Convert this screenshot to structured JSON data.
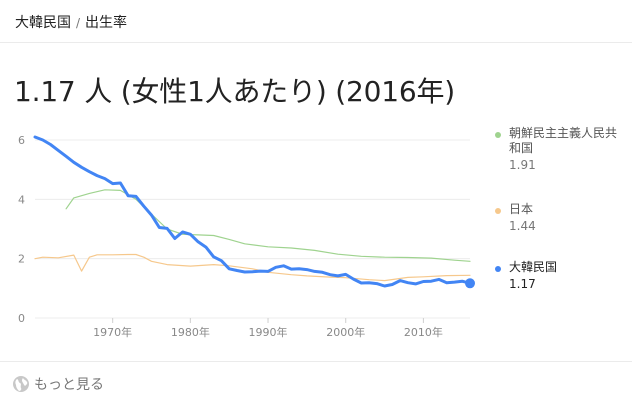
{
  "breadcrumb": {
    "country": "大韓民国",
    "separator": "/",
    "metric": "出生率"
  },
  "headline": "1.17 人 (女性1人あたり) (2016年)",
  "legend": [
    {
      "name": "朝鮮民主主義人民共和国",
      "value": "1.91",
      "color": "#9fd38f"
    },
    {
      "name": "日本",
      "value": "1.44",
      "color": "#f6c88c"
    },
    {
      "name": "大韓民国",
      "value": "1.17",
      "color": "#4285f4"
    }
  ],
  "footer": {
    "more_label": "もっと見る",
    "icon": "globe-icon"
  },
  "chart_data": {
    "type": "line",
    "title": "",
    "xlabel": "",
    "ylabel": "",
    "xlim": [
      1960,
      2016
    ],
    "ylim": [
      0,
      6
    ],
    "yticks": [
      "0",
      "2",
      "4",
      "6"
    ],
    "xticks": [
      {
        "x": 1970,
        "label": "1970年"
      },
      {
        "x": 1980,
        "label": "1980年"
      },
      {
        "x": 1990,
        "label": "1990年"
      },
      {
        "x": 2000,
        "label": "2000年"
      },
      {
        "x": 2010,
        "label": "2010年"
      }
    ],
    "grid": true,
    "legend_position": "right",
    "series": [
      {
        "name": "朝鮮民主主義人民共和国",
        "color": "#9fd38f",
        "x": [
          1964,
          1965,
          1967,
          1969,
          1971,
          1973,
          1975,
          1977,
          1979,
          1981,
          1983,
          1985,
          1987,
          1990,
          1993,
          1996,
          1999,
          2002,
          2005,
          2008,
          2011,
          2014,
          2016
        ],
        "y": [
          3.68,
          4.05,
          4.2,
          4.32,
          4.3,
          4.0,
          3.5,
          3.0,
          2.82,
          2.8,
          2.78,
          2.65,
          2.5,
          2.4,
          2.36,
          2.28,
          2.15,
          2.08,
          2.05,
          2.04,
          2.02,
          1.95,
          1.91
        ]
      },
      {
        "name": "日本",
        "color": "#f6c88c",
        "x": [
          1960,
          1961,
          1963,
          1965,
          1966,
          1967,
          1968,
          1970,
          1972,
          1973,
          1974,
          1975,
          1977,
          1980,
          1983,
          1985,
          1988,
          1990,
          1993,
          1995,
          1998,
          2000,
          2003,
          2005,
          2008,
          2010,
          2013,
          2016
        ],
        "y": [
          2.0,
          2.05,
          2.03,
          2.12,
          1.58,
          2.05,
          2.13,
          2.13,
          2.14,
          2.14,
          2.05,
          1.91,
          1.8,
          1.75,
          1.8,
          1.76,
          1.66,
          1.54,
          1.46,
          1.42,
          1.38,
          1.36,
          1.29,
          1.26,
          1.37,
          1.39,
          1.43,
          1.44
        ]
      },
      {
        "name": "大韓民国",
        "color": "#4285f4",
        "x": [
          1960,
          1961,
          1962,
          1963,
          1964,
          1965,
          1966,
          1967,
          1968,
          1969,
          1970,
          1971,
          1972,
          1973,
          1974,
          1975,
          1976,
          1977,
          1978,
          1979,
          1980,
          1981,
          1982,
          1983,
          1984,
          1985,
          1986,
          1987,
          1988,
          1989,
          1990,
          1991,
          1992,
          1993,
          1994,
          1995,
          1996,
          1997,
          1998,
          1999,
          2000,
          2001,
          2002,
          2003,
          2004,
          2005,
          2006,
          2007,
          2008,
          2009,
          2010,
          2011,
          2012,
          2013,
          2014,
          2015,
          2016
        ],
        "y": [
          6.1,
          6.0,
          5.85,
          5.65,
          5.45,
          5.25,
          5.08,
          4.93,
          4.8,
          4.7,
          4.53,
          4.55,
          4.12,
          4.1,
          3.77,
          3.47,
          3.05,
          3.02,
          2.68,
          2.9,
          2.82,
          2.57,
          2.39,
          2.06,
          1.93,
          1.66,
          1.6,
          1.55,
          1.56,
          1.58,
          1.57,
          1.71,
          1.76,
          1.65,
          1.66,
          1.63,
          1.57,
          1.54,
          1.46,
          1.42,
          1.47,
          1.31,
          1.18,
          1.19,
          1.16,
          1.08,
          1.13,
          1.26,
          1.19,
          1.15,
          1.23,
          1.24,
          1.3,
          1.19,
          1.21,
          1.24,
          1.17
        ]
      }
    ]
  }
}
